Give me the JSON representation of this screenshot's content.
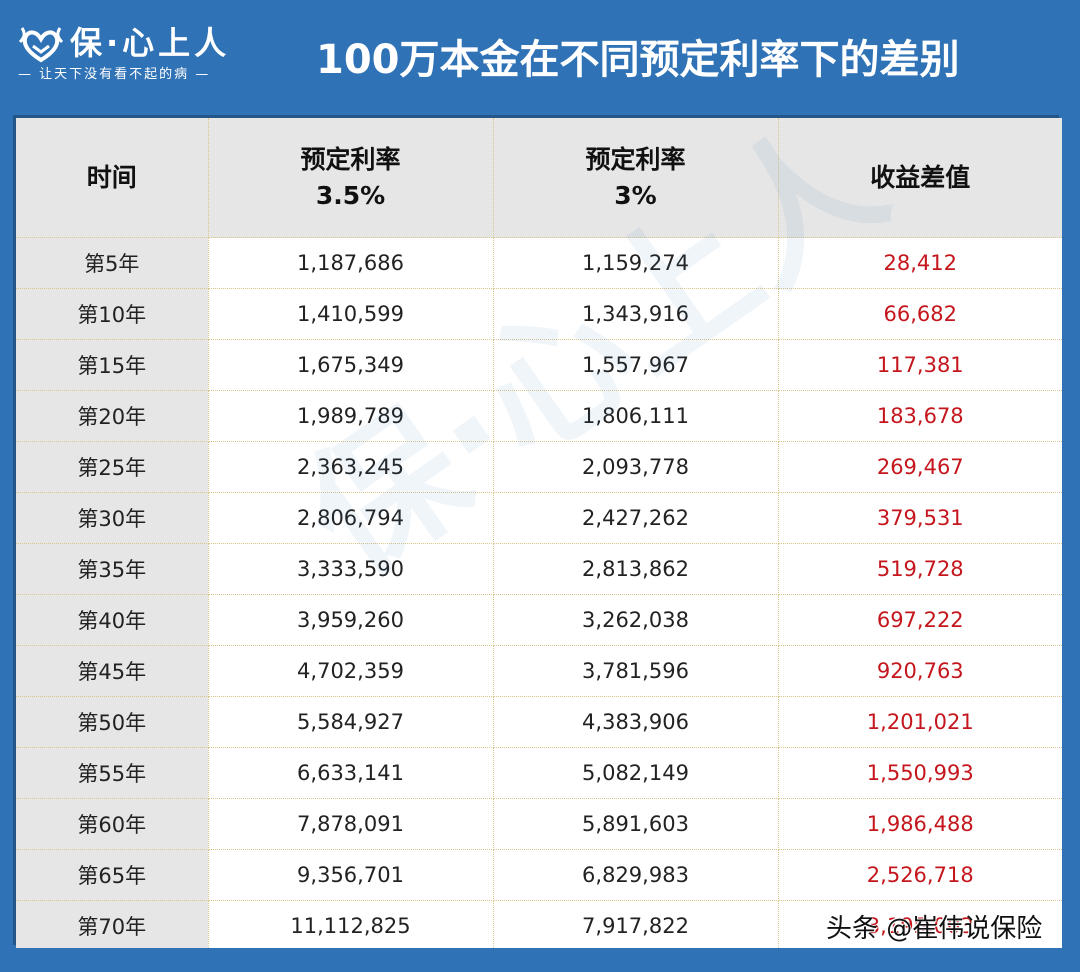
{
  "brand": {
    "logo_icon": "heart-wings-icon",
    "name": "保·心上人",
    "slogan": "— 让天下没有看不起的病 —"
  },
  "title": "100万本金在不同预定利率下的差别",
  "table": {
    "headers": [
      {
        "line1": "时间",
        "line2": ""
      },
      {
        "line1": "预定利率",
        "line2": "3.5%"
      },
      {
        "line1": "预定利率",
        "line2": "3%"
      },
      {
        "line1": "收益差值",
        "line2": ""
      }
    ],
    "rows": [
      {
        "year": "第5年",
        "rate35": "1,187,686",
        "rate3": "1,159,274",
        "diff": "28,412"
      },
      {
        "year": "第10年",
        "rate35": "1,410,599",
        "rate3": "1,343,916",
        "diff": "66,682"
      },
      {
        "year": "第15年",
        "rate35": "1,675,349",
        "rate3": "1,557,967",
        "diff": "117,381"
      },
      {
        "year": "第20年",
        "rate35": "1,989,789",
        "rate3": "1,806,111",
        "diff": "183,678"
      },
      {
        "year": "第25年",
        "rate35": "2,363,245",
        "rate3": "2,093,778",
        "diff": "269,467"
      },
      {
        "year": "第30年",
        "rate35": "2,806,794",
        "rate3": "2,427,262",
        "diff": "379,531"
      },
      {
        "year": "第35年",
        "rate35": "3,333,590",
        "rate3": "2,813,862",
        "diff": "519,728"
      },
      {
        "year": "第40年",
        "rate35": "3,959,260",
        "rate3": "3,262,038",
        "diff": "697,222"
      },
      {
        "year": "第45年",
        "rate35": "4,702,359",
        "rate3": "3,781,596",
        "diff": "920,763"
      },
      {
        "year": "第50年",
        "rate35": "5,584,927",
        "rate3": "4,383,906",
        "diff": "1,201,021"
      },
      {
        "year": "第55年",
        "rate35": "6,633,141",
        "rate3": "5,082,149",
        "diff": "1,550,993"
      },
      {
        "year": "第60年",
        "rate35": "7,878,091",
        "rate3": "5,891,603",
        "diff": "1,986,488"
      },
      {
        "year": "第65年",
        "rate35": "9,356,701",
        "rate3": "6,829,983",
        "diff": "2,526,718"
      },
      {
        "year": "第70年",
        "rate35": "11,112,825",
        "rate3": "7,917,822",
        "diff": "3,195,003"
      }
    ]
  },
  "watermark": "保·心上人",
  "credit": "头条 @崔伟说保险",
  "colors": {
    "background": "#2f72b6",
    "header_cell": "#e6e6e6",
    "diff_text": "#c4161c",
    "grid_line": "#d9c48a"
  }
}
